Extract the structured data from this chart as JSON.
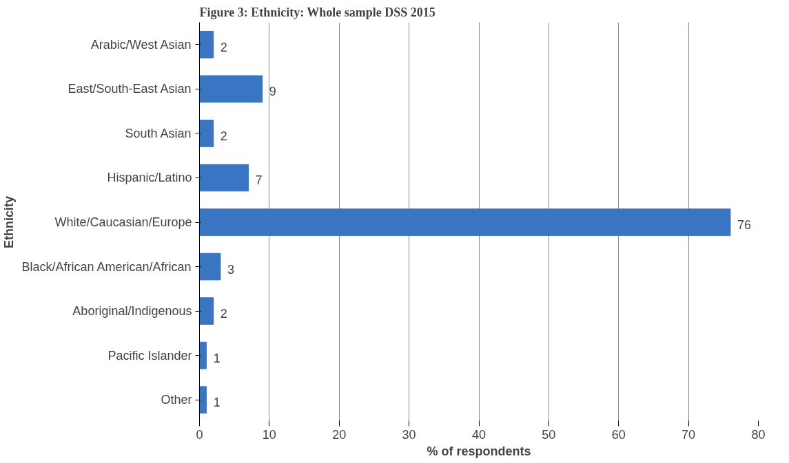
{
  "chart_data": {
    "type": "bar",
    "orientation": "horizontal",
    "title": "Figure 3: Ethnicity: Whole sample DSS 2015",
    "xlabel": "% of respondents",
    "ylabel": "Ethnicity",
    "categories": [
      "Arabic/West Asian",
      "East/South-East Asian",
      "South Asian",
      "Hispanic/Latino",
      "White/Caucasian/Europe",
      "Black/African American/African",
      "Aboriginal/Indigenous",
      "Pacific Islander",
      "Other"
    ],
    "values": [
      2,
      9,
      2,
      7,
      76,
      3,
      2,
      1,
      1
    ],
    "color": "#3a75c4",
    "data_labels": true,
    "xlim": [
      0,
      80
    ],
    "xticks": [
      0,
      10,
      20,
      30,
      40,
      50,
      60,
      70,
      80
    ],
    "grid": "x"
  }
}
